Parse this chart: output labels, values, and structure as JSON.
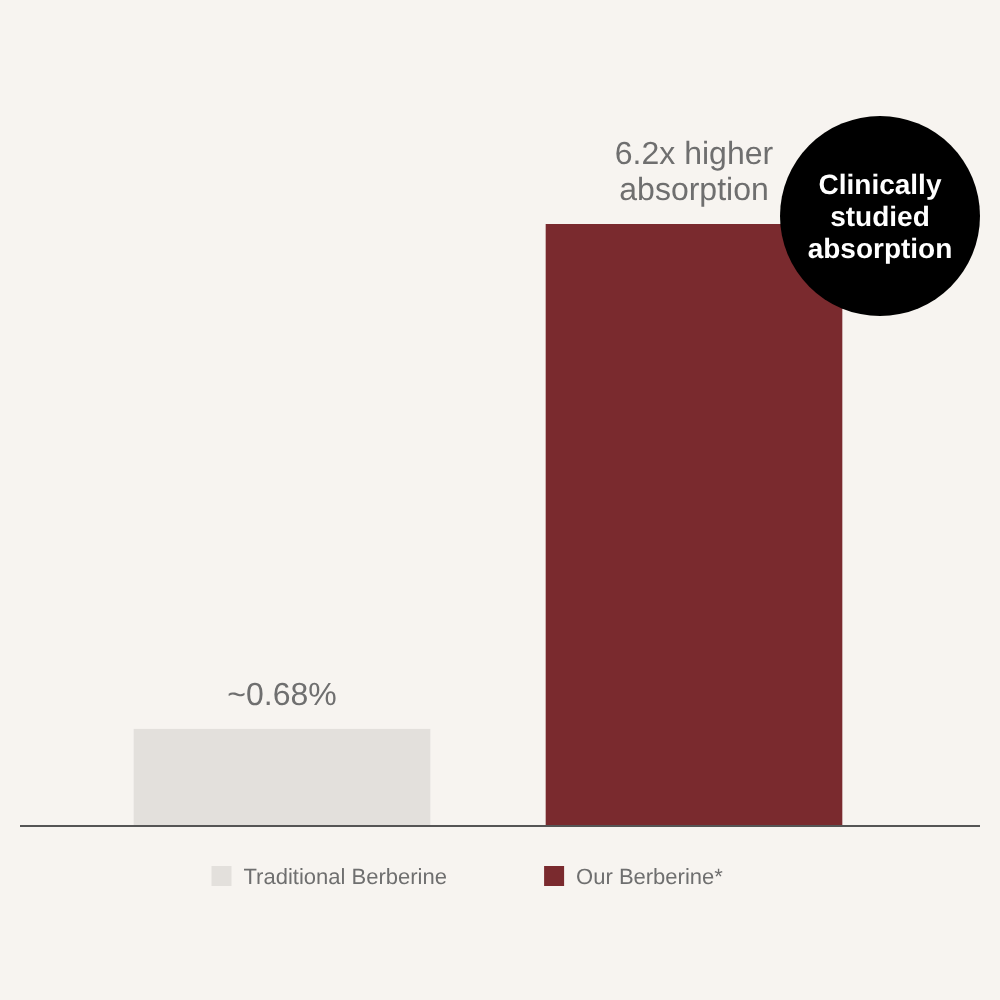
{
  "chart_data": {
    "type": "bar",
    "stacked": true,
    "categories": [
      null,
      null
    ],
    "series": [
      {
        "name": "Traditional Berberine",
        "color": "#e3e0dc",
        "values": [
          0.68,
          null
        ],
        "value_labels": [
          "~0.68%",
          null
        ]
      },
      {
        "name": "Our Berberine*",
        "color": "#7a2a2e",
        "values": [
          null,
          4.216
        ]
      }
    ],
    "annotations": [
      {
        "text": "6.2x higher absorption",
        "y": 4.216
      },
      "Clinically studied absorption"
    ],
    "legend": "bottom"
  }
}
